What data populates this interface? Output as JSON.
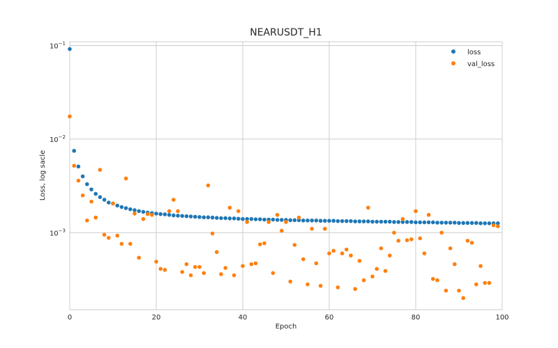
{
  "chart_data": {
    "type": "scatter",
    "title": "NEARUSDT_H1",
    "xlabel": "Epoch",
    "ylabel": "Loss, log sacle",
    "xlim": [
      0,
      100
    ],
    "ylim": [
      0.00015,
      0.11
    ],
    "yscale": "log",
    "grid": true,
    "legend_position": "top-right",
    "x_ticks": [
      0,
      20,
      40,
      60,
      80,
      100
    ],
    "x_tick_labels": [
      "0",
      "20",
      "40",
      "60",
      "80",
      "100"
    ],
    "y_ticks": [
      0.1,
      0.01,
      0.001
    ],
    "y_tick_labels": [
      {
        "base": "10",
        "exp": "−1"
      },
      {
        "base": "10",
        "exp": "−2"
      },
      {
        "base": "10",
        "exp": "−3"
      }
    ],
    "series": [
      {
        "name": "loss",
        "color": "#1f77b4",
        "values": [
          0.092,
          0.0075,
          0.0051,
          0.004,
          0.0033,
          0.0029,
          0.0026,
          0.0024,
          0.00225,
          0.0021,
          0.00205,
          0.00195,
          0.00188,
          0.00183,
          0.00178,
          0.00174,
          0.0017,
          0.00167,
          0.00164,
          0.00162,
          0.0016,
          0.00158,
          0.00157,
          0.00155,
          0.00153,
          0.00152,
          0.00151,
          0.0015,
          0.00149,
          0.00148,
          0.00147,
          0.00146,
          0.00146,
          0.00145,
          0.00144,
          0.00143,
          0.00143,
          0.00142,
          0.00142,
          0.00141,
          0.0014,
          0.0014,
          0.0014,
          0.00139,
          0.00139,
          0.00138,
          0.00138,
          0.00138,
          0.00137,
          0.00137,
          0.00137,
          0.00136,
          0.00136,
          0.00136,
          0.00135,
          0.00135,
          0.00135,
          0.00135,
          0.00134,
          0.00134,
          0.00134,
          0.00134,
          0.00133,
          0.00133,
          0.00133,
          0.00133,
          0.00132,
          0.00132,
          0.00132,
          0.00132,
          0.00131,
          0.00131,
          0.00131,
          0.00131,
          0.00131,
          0.0013,
          0.0013,
          0.0013,
          0.0013,
          0.0013,
          0.00129,
          0.00129,
          0.00129,
          0.00129,
          0.00129,
          0.00128,
          0.00128,
          0.00128,
          0.00128,
          0.00128,
          0.00127,
          0.00127,
          0.00127,
          0.00127,
          0.00127,
          0.00126,
          0.00126,
          0.00126,
          0.00126,
          0.00126
        ]
      },
      {
        "name": "val_loss",
        "color": "#ff7f0e",
        "values": [
          0.0175,
          0.0052,
          0.0036,
          0.0025,
          0.00135,
          0.00215,
          0.00145,
          0.0047,
          0.00095,
          0.00088,
          0.00205,
          0.00093,
          0.00076,
          0.0038,
          0.00076,
          0.0016,
          0.00054,
          0.0014,
          0.00158,
          0.00155,
          0.00049,
          0.00041,
          0.0004,
          0.0017,
          0.00225,
          0.0017,
          0.00038,
          0.00046,
          0.00035,
          0.00043,
          0.00043,
          0.00037,
          0.0032,
          0.00098,
          0.00062,
          0.00036,
          0.00042,
          0.00185,
          0.00035,
          0.0017,
          0.00044,
          0.0013,
          0.00046,
          0.00047,
          0.00075,
          0.00077,
          0.0013,
          0.00037,
          0.00155,
          0.00105,
          0.0013,
          0.0003,
          0.00074,
          0.00145,
          0.00052,
          0.00028,
          0.0011,
          0.00047,
          0.00027,
          0.0011,
          0.0006,
          0.00064,
          0.00026,
          0.0006,
          0.00066,
          0.00057,
          0.00025,
          0.0005,
          0.00031,
          0.00185,
          0.00034,
          0.00041,
          0.00068,
          0.00039,
          0.00057,
          0.001,
          0.00082,
          0.0014,
          0.00083,
          0.00085,
          0.0017,
          0.00087,
          0.0006,
          0.00155,
          0.00032,
          0.00031,
          0.001,
          0.00024,
          0.00068,
          0.00046,
          0.00024,
          0.0002,
          0.00082,
          0.00078,
          0.00028,
          0.00044,
          0.00029,
          0.00029,
          0.0012,
          0.00117
        ]
      }
    ]
  }
}
